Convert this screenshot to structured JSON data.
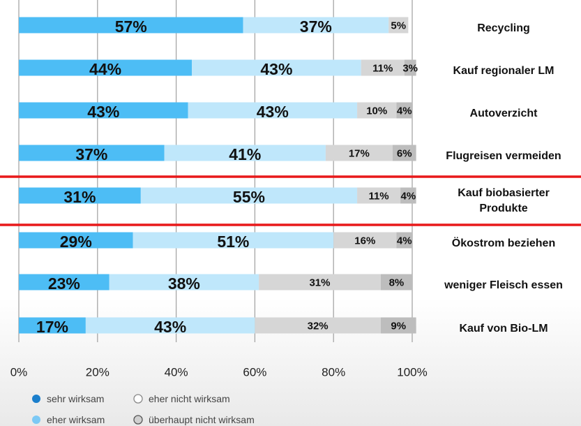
{
  "chart_data": {
    "type": "stacked_barh",
    "categories": [
      "Recycling",
      "Kauf regionaler  LM",
      "Autoverzicht",
      "Flugreisen vermeiden",
      "Kauf biobasierter\nProdukte",
      "Ökostrom beziehen",
      "weniger Fleisch essen",
      "Kauf von Bio-LM"
    ],
    "series": [
      {
        "name": "sehr wirksam",
        "color": "#4dbdf5",
        "values": [
          57,
          44,
          43,
          37,
          31,
          29,
          23,
          17
        ],
        "value_labels": [
          "57%",
          "44%",
          "43%",
          "37%",
          "31%",
          "29%",
          "23%",
          "17%"
        ]
      },
      {
        "name": "eher wirksam",
        "color": "#bfe7fb",
        "values": [
          37,
          43,
          43,
          41,
          55,
          51,
          38,
          43
        ],
        "value_labels": [
          "37%",
          "43%",
          "43%",
          "41%",
          "55%",
          "51%",
          "38%",
          "43%"
        ]
      },
      {
        "name": "eher nicht wirksam",
        "color": "#d6d6d6",
        "values": [
          5,
          11,
          10,
          17,
          11,
          16,
          31,
          32
        ],
        "value_labels": [
          "5%",
          "11%",
          "10%",
          "17%",
          "11%",
          "16%",
          "31%",
          "32%"
        ]
      },
      {
        "name": "überhaupt nicht wirksam",
        "color": "#bdbdbd",
        "values": [
          null,
          3,
          4,
          6,
          4,
          4,
          8,
          9
        ],
        "value_labels": [
          null,
          "3%",
          "4%",
          "6%",
          "4%",
          "4%",
          "8%",
          "9%"
        ]
      }
    ],
    "xlim": [
      0,
      100
    ],
    "xticks": [
      {
        "value": 0,
        "label": "0%"
      },
      {
        "value": 20,
        "label": "20%"
      },
      {
        "value": 40,
        "label": "40%"
      },
      {
        "value": 60,
        "label": "60%"
      },
      {
        "value": 80,
        "label": "80%"
      },
      {
        "value": 100,
        "label": "100%"
      }
    ],
    "grid": true
  }
}
